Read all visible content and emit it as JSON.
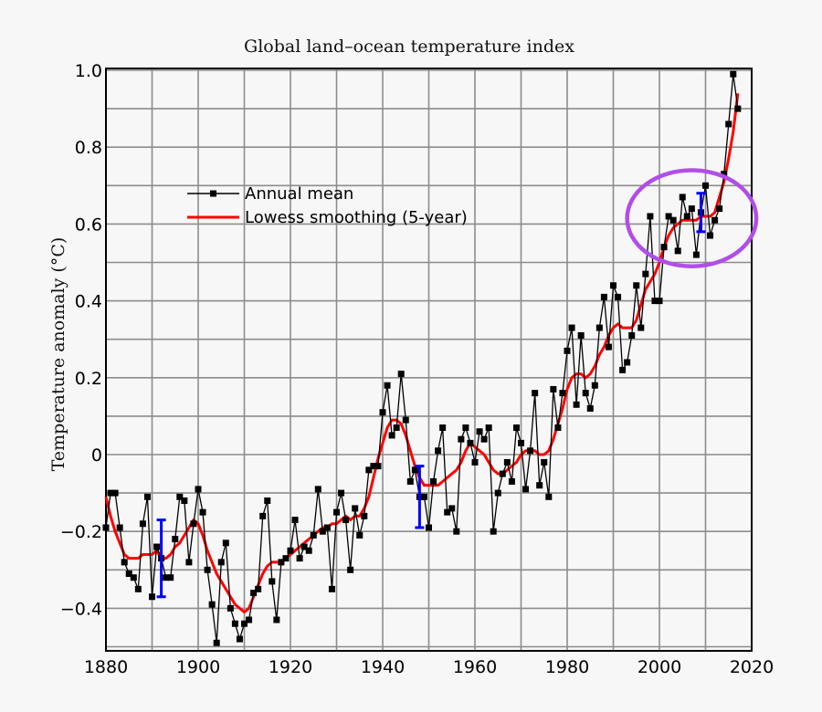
{
  "chart_data": {
    "type": "line",
    "title": "Global land–ocean temperature index",
    "xlabel": "",
    "ylabel": "Temperature anomaly (°C)",
    "xlim": [
      1880,
      2020
    ],
    "ylim": [
      -0.5,
      1.0
    ],
    "x_ticks": [
      1880,
      1900,
      1920,
      1940,
      1960,
      1980,
      2000,
      2020
    ],
    "x_tick_labels": [
      "1880",
      "1900",
      "1920",
      "1940",
      "1960",
      "1980",
      "2000",
      "2020"
    ],
    "y_ticks": [
      -0.4,
      -0.2,
      0,
      0.2,
      0.4,
      0.6,
      0.8,
      1.0
    ],
    "y_tick_labels": [
      "−0.4",
      "−0.2",
      "0",
      "0.2",
      "0.4",
      "0.6",
      "0.8",
      "1.0"
    ],
    "grid": true,
    "grid_step": {
      "x": 10,
      "y": 0.1
    },
    "legend_position": "upper left (inside plot)",
    "legend": [
      "Annual mean",
      "Lowess smoothing (5-year)"
    ],
    "x": [
      1880,
      1881,
      1882,
      1883,
      1884,
      1885,
      1886,
      1887,
      1888,
      1889,
      1890,
      1891,
      1892,
      1893,
      1894,
      1895,
      1896,
      1897,
      1898,
      1899,
      1900,
      1901,
      1902,
      1903,
      1904,
      1905,
      1906,
      1907,
      1908,
      1909,
      1910,
      1911,
      1912,
      1913,
      1914,
      1915,
      1916,
      1917,
      1918,
      1919,
      1920,
      1921,
      1922,
      1923,
      1924,
      1925,
      1926,
      1927,
      1928,
      1929,
      1930,
      1931,
      1932,
      1933,
      1934,
      1935,
      1936,
      1937,
      1938,
      1939,
      1940,
      1941,
      1942,
      1943,
      1944,
      1945,
      1946,
      1947,
      1948,
      1949,
      1950,
      1951,
      1952,
      1953,
      1954,
      1955,
      1956,
      1957,
      1958,
      1959,
      1960,
      1961,
      1962,
      1963,
      1964,
      1965,
      1966,
      1967,
      1968,
      1969,
      1970,
      1971,
      1972,
      1973,
      1974,
      1975,
      1976,
      1977,
      1978,
      1979,
      1980,
      1981,
      1982,
      1983,
      1984,
      1985,
      1986,
      1987,
      1988,
      1989,
      1990,
      1991,
      1992,
      1993,
      1994,
      1995,
      1996,
      1997,
      1998,
      1999,
      2000,
      2001,
      2002,
      2003,
      2004,
      2005,
      2006,
      2007,
      2008,
      2009,
      2010,
      2011,
      2012,
      2013,
      2014,
      2015,
      2016,
      2017
    ],
    "series": [
      {
        "name": "Annual mean",
        "color": "#000000",
        "marker": "square",
        "values": [
          -0.19,
          -0.1,
          -0.1,
          -0.19,
          -0.28,
          -0.31,
          -0.32,
          -0.35,
          -0.18,
          -0.11,
          -0.37,
          -0.24,
          -0.27,
          -0.32,
          -0.32,
          -0.22,
          -0.11,
          -0.12,
          -0.28,
          -0.18,
          -0.09,
          -0.15,
          -0.3,
          -0.39,
          -0.49,
          -0.28,
          -0.23,
          -0.4,
          -0.44,
          -0.48,
          -0.44,
          -0.43,
          -0.36,
          -0.35,
          -0.16,
          -0.12,
          -0.33,
          -0.43,
          -0.28,
          -0.27,
          -0.25,
          -0.17,
          -0.27,
          -0.24,
          -0.25,
          -0.21,
          -0.09,
          -0.2,
          -0.19,
          -0.35,
          -0.15,
          -0.1,
          -0.17,
          -0.3,
          -0.14,
          -0.21,
          -0.16,
          -0.04,
          -0.03,
          -0.03,
          0.11,
          0.18,
          0.05,
          0.07,
          0.21,
          0.09,
          -0.07,
          -0.04,
          -0.11,
          -0.11,
          -0.19,
          -0.07,
          0.01,
          0.07,
          -0.15,
          -0.14,
          -0.2,
          0.04,
          0.07,
          0.03,
          -0.02,
          0.06,
          0.04,
          0.07,
          -0.2,
          -0.1,
          -0.05,
          -0.02,
          -0.07,
          0.07,
          0.03,
          -0.09,
          0.01,
          0.16,
          -0.08,
          -0.02,
          -0.11,
          0.17,
          0.07,
          0.16,
          0.27,
          0.33,
          0.13,
          0.31,
          0.16,
          0.12,
          0.18,
          0.33,
          0.41,
          0.28,
          0.44,
          0.41,
          0.22,
          0.24,
          0.31,
          0.44,
          0.33,
          0.47,
          0.62,
          0.4,
          0.4,
          0.54,
          0.62,
          0.61,
          0.53,
          0.67,
          0.62,
          0.64,
          0.52,
          0.63,
          0.7,
          0.57,
          0.61,
          0.64,
          0.73,
          0.86,
          0.99,
          0.9
        ]
      },
      {
        "name": "Lowess smoothing (5-year)",
        "color": "#ff0000",
        "values": [
          -0.11,
          -0.16,
          -0.2,
          -0.23,
          -0.26,
          -0.27,
          -0.27,
          -0.27,
          -0.26,
          -0.26,
          -0.26,
          -0.25,
          -0.27,
          -0.27,
          -0.26,
          -0.24,
          -0.23,
          -0.21,
          -0.19,
          -0.17,
          -0.18,
          -0.21,
          -0.25,
          -0.28,
          -0.31,
          -0.33,
          -0.35,
          -0.37,
          -0.39,
          -0.4,
          -0.41,
          -0.4,
          -0.37,
          -0.34,
          -0.31,
          -0.29,
          -0.28,
          -0.28,
          -0.28,
          -0.27,
          -0.26,
          -0.25,
          -0.24,
          -0.23,
          -0.22,
          -0.21,
          -0.2,
          -0.19,
          -0.19,
          -0.18,
          -0.18,
          -0.17,
          -0.16,
          -0.17,
          -0.16,
          -0.16,
          -0.14,
          -0.11,
          -0.06,
          -0.01,
          0.03,
          0.07,
          0.09,
          0.09,
          0.08,
          0.05,
          0.01,
          -0.03,
          -0.06,
          -0.08,
          -0.08,
          -0.08,
          -0.08,
          -0.07,
          -0.06,
          -0.05,
          -0.04,
          -0.02,
          0.01,
          0.03,
          0.02,
          0.01,
          0.0,
          -0.02,
          -0.04,
          -0.05,
          -0.05,
          -0.04,
          -0.03,
          -0.02,
          -0.0,
          0.01,
          0.01,
          0.01,
          -0.0,
          -0.0,
          0.01,
          0.04,
          0.08,
          0.12,
          0.17,
          0.2,
          0.21,
          0.21,
          0.2,
          0.21,
          0.23,
          0.26,
          0.28,
          0.31,
          0.33,
          0.34,
          0.33,
          0.33,
          0.33,
          0.35,
          0.39,
          0.43,
          0.45,
          0.47,
          0.5,
          0.54,
          0.57,
          0.59,
          0.6,
          0.61,
          0.61,
          0.61,
          0.61,
          0.62,
          0.62,
          0.62,
          0.63,
          0.67,
          0.71,
          0.77,
          0.84,
          0.94
        ]
      }
    ],
    "error_bars": [
      {
        "x": 1892,
        "center": -0.27,
        "low": -0.37,
        "high": -0.17,
        "color": "#0000ff"
      },
      {
        "x": 1948,
        "center": -0.11,
        "low": -0.19,
        "high": -0.03,
        "color": "#0000ff"
      },
      {
        "x": 2009,
        "center": 0.63,
        "low": 0.58,
        "high": 0.68,
        "color": "#0000ff"
      }
    ],
    "annotations": [
      {
        "type": "ellipse",
        "color": "#b14ee8",
        "x_range": [
          1993,
          2021
        ],
        "y_range": [
          0.49,
          0.74
        ],
        "description": "highlighted region ~2000–2014"
      }
    ]
  }
}
